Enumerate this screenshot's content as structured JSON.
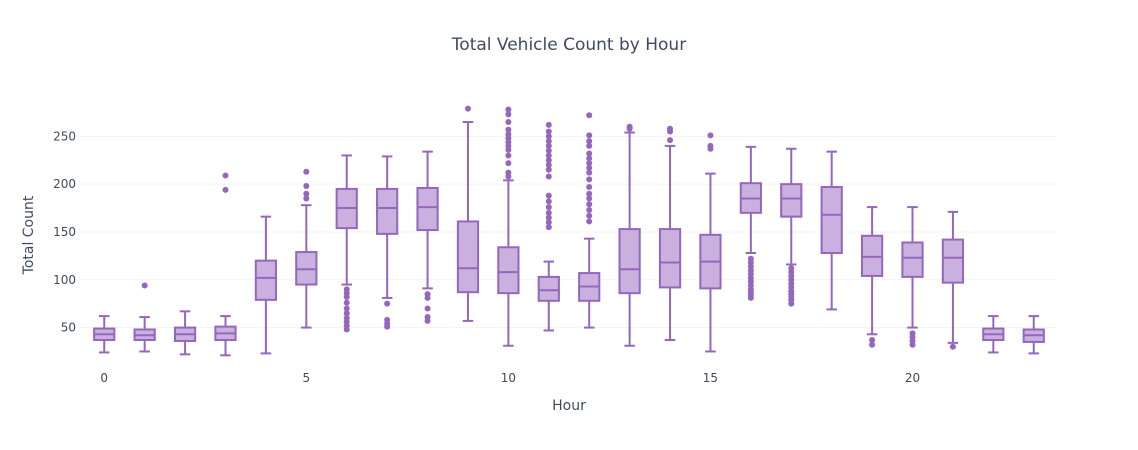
{
  "chart_data": {
    "type": "box",
    "title": "Total Vehicle Count by Hour",
    "xlabel": "Hour",
    "ylabel": "Total Count",
    "x_ticks": [
      0,
      5,
      10,
      15,
      20
    ],
    "y_ticks": [
      50,
      100,
      150,
      200,
      250
    ],
    "xlim": [
      -0.6,
      23.6
    ],
    "ylim": [
      14,
      288
    ],
    "grid": true,
    "color": "#9467bd",
    "fill": "#c9b0de",
    "boxes": [
      {
        "hour": 0,
        "min": 24,
        "q1": 37,
        "median": 43,
        "q3": 49,
        "max": 62,
        "outliers": []
      },
      {
        "hour": 1,
        "min": 25,
        "q1": 37,
        "median": 42,
        "q3": 48,
        "max": 61,
        "outliers": [
          94
        ]
      },
      {
        "hour": 2,
        "min": 22,
        "q1": 36,
        "median": 43,
        "q3": 50,
        "max": 67,
        "outliers": []
      },
      {
        "hour": 3,
        "min": 21,
        "q1": 37,
        "median": 44,
        "q3": 51,
        "max": 62,
        "outliers": [
          194,
          209
        ]
      },
      {
        "hour": 4,
        "min": 23,
        "q1": 79,
        "median": 102,
        "q3": 120,
        "max": 166,
        "outliers": []
      },
      {
        "hour": 5,
        "min": 50,
        "q1": 95,
        "median": 111,
        "q3": 129,
        "max": 178,
        "outliers": [
          185,
          190,
          198,
          213
        ]
      },
      {
        "hour": 6,
        "min": 95,
        "q1": 154,
        "median": 175,
        "q3": 195,
        "max": 230,
        "outliers": [
          48,
          52,
          56,
          60,
          65,
          70,
          76,
          82,
          86,
          90
        ]
      },
      {
        "hour": 7,
        "min": 81,
        "q1": 148,
        "median": 175,
        "q3": 195,
        "max": 229,
        "outliers": [
          51,
          54,
          58,
          75
        ]
      },
      {
        "hour": 8,
        "min": 91,
        "q1": 152,
        "median": 176,
        "q3": 196,
        "max": 234,
        "outliers": [
          57,
          61,
          70,
          81,
          85
        ]
      },
      {
        "hour": 9,
        "min": 57,
        "q1": 87,
        "median": 112,
        "q3": 161,
        "max": 265,
        "outliers": [
          279
        ]
      },
      {
        "hour": 10,
        "min": 31,
        "q1": 86,
        "median": 108,
        "q3": 134,
        "max": 204,
        "outliers": [
          208,
          212,
          222,
          230,
          236,
          240,
          244,
          248,
          252,
          257,
          265,
          273,
          278
        ]
      },
      {
        "hour": 11,
        "min": 47,
        "q1": 78,
        "median": 89,
        "q3": 103,
        "max": 119,
        "outliers": [
          155,
          160,
          165,
          170,
          176,
          182,
          188,
          208,
          215,
          220,
          225,
          230,
          235,
          240,
          245,
          250,
          255,
          262
        ]
      },
      {
        "hour": 12,
        "min": 50,
        "q1": 78,
        "median": 93,
        "q3": 107,
        "max": 143,
        "outliers": [
          161,
          167,
          173,
          179,
          185,
          190,
          197,
          205,
          212,
          217,
          222,
          227,
          232,
          240,
          245,
          251,
          272
        ]
      },
      {
        "hour": 13,
        "min": 31,
        "q1": 86,
        "median": 111,
        "q3": 153,
        "max": 254,
        "outliers": [
          258,
          260
        ]
      },
      {
        "hour": 14,
        "min": 37,
        "q1": 92,
        "median": 118,
        "q3": 153,
        "max": 240,
        "outliers": [
          246,
          255,
          258
        ]
      },
      {
        "hour": 15,
        "min": 25,
        "q1": 91,
        "median": 119,
        "q3": 147,
        "max": 211,
        "outliers": [
          237,
          240,
          251
        ]
      },
      {
        "hour": 16,
        "min": 128,
        "q1": 170,
        "median": 185,
        "q3": 201,
        "max": 239,
        "outliers": [
          81,
          84,
          87,
          90,
          94,
          98,
          102,
          106,
          110,
          114,
          118,
          122
        ]
      },
      {
        "hour": 17,
        "min": 116,
        "q1": 166,
        "median": 185,
        "q3": 200,
        "max": 237,
        "outliers": [
          75,
          79,
          82,
          85,
          88,
          92,
          96,
          100,
          104,
          108,
          112
        ]
      },
      {
        "hour": 18,
        "min": 69,
        "q1": 128,
        "median": 168,
        "q3": 197,
        "max": 234,
        "outliers": []
      },
      {
        "hour": 19,
        "min": 43,
        "q1": 104,
        "median": 124,
        "q3": 146,
        "max": 176,
        "outliers": [
          32,
          37
        ]
      },
      {
        "hour": 20,
        "min": 50,
        "q1": 103,
        "median": 123,
        "q3": 139,
        "max": 176,
        "outliers": [
          32,
          36,
          40,
          44
        ]
      },
      {
        "hour": 21,
        "min": 34,
        "q1": 97,
        "median": 123,
        "q3": 142,
        "max": 171,
        "outliers": [
          30
        ]
      },
      {
        "hour": 22,
        "min": 24,
        "q1": 37,
        "median": 43,
        "q3": 49,
        "max": 62,
        "outliers": []
      },
      {
        "hour": 23,
        "min": 23,
        "q1": 35,
        "median": 42,
        "q3": 48,
        "max": 62,
        "outliers": []
      }
    ]
  }
}
